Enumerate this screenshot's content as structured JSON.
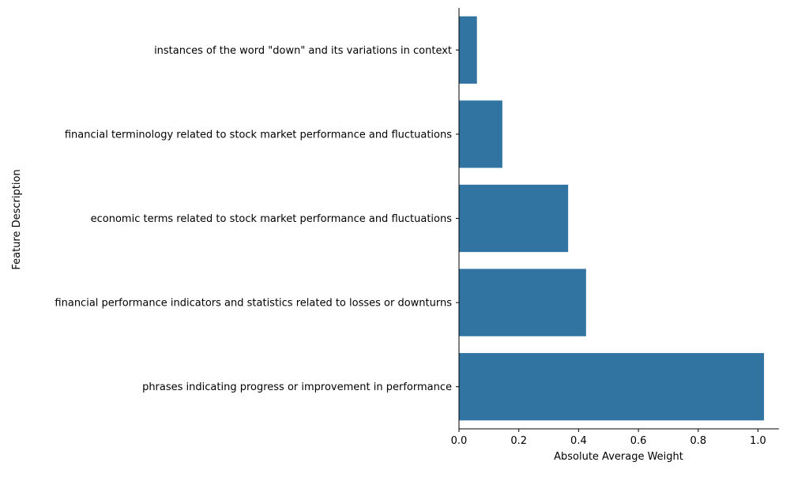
{
  "chart_data": {
    "type": "bar",
    "orientation": "horizontal",
    "title": "",
    "xlabel": "Absolute Average Weight",
    "ylabel": "Feature Description",
    "xlim": [
      0,
      1.07
    ],
    "xticks": [
      0.0,
      0.2,
      0.4,
      0.6,
      0.8,
      1.0
    ],
    "xtick_labels": [
      "0.0",
      "0.2",
      "0.4",
      "0.6",
      "0.8",
      "1.0"
    ],
    "grid": false,
    "bar_color": "#3274a1",
    "categories": [
      "instances of the word \"down\" and its variations in context",
      "financial terminology related to stock market performance and fluctuations",
      "economic terms related to stock market performance and fluctuations",
      "financial performance indicators and statistics related to losses or downturns",
      "phrases indicating progress or improvement in performance"
    ],
    "values": [
      0.06,
      0.145,
      0.365,
      0.425,
      1.02
    ]
  }
}
